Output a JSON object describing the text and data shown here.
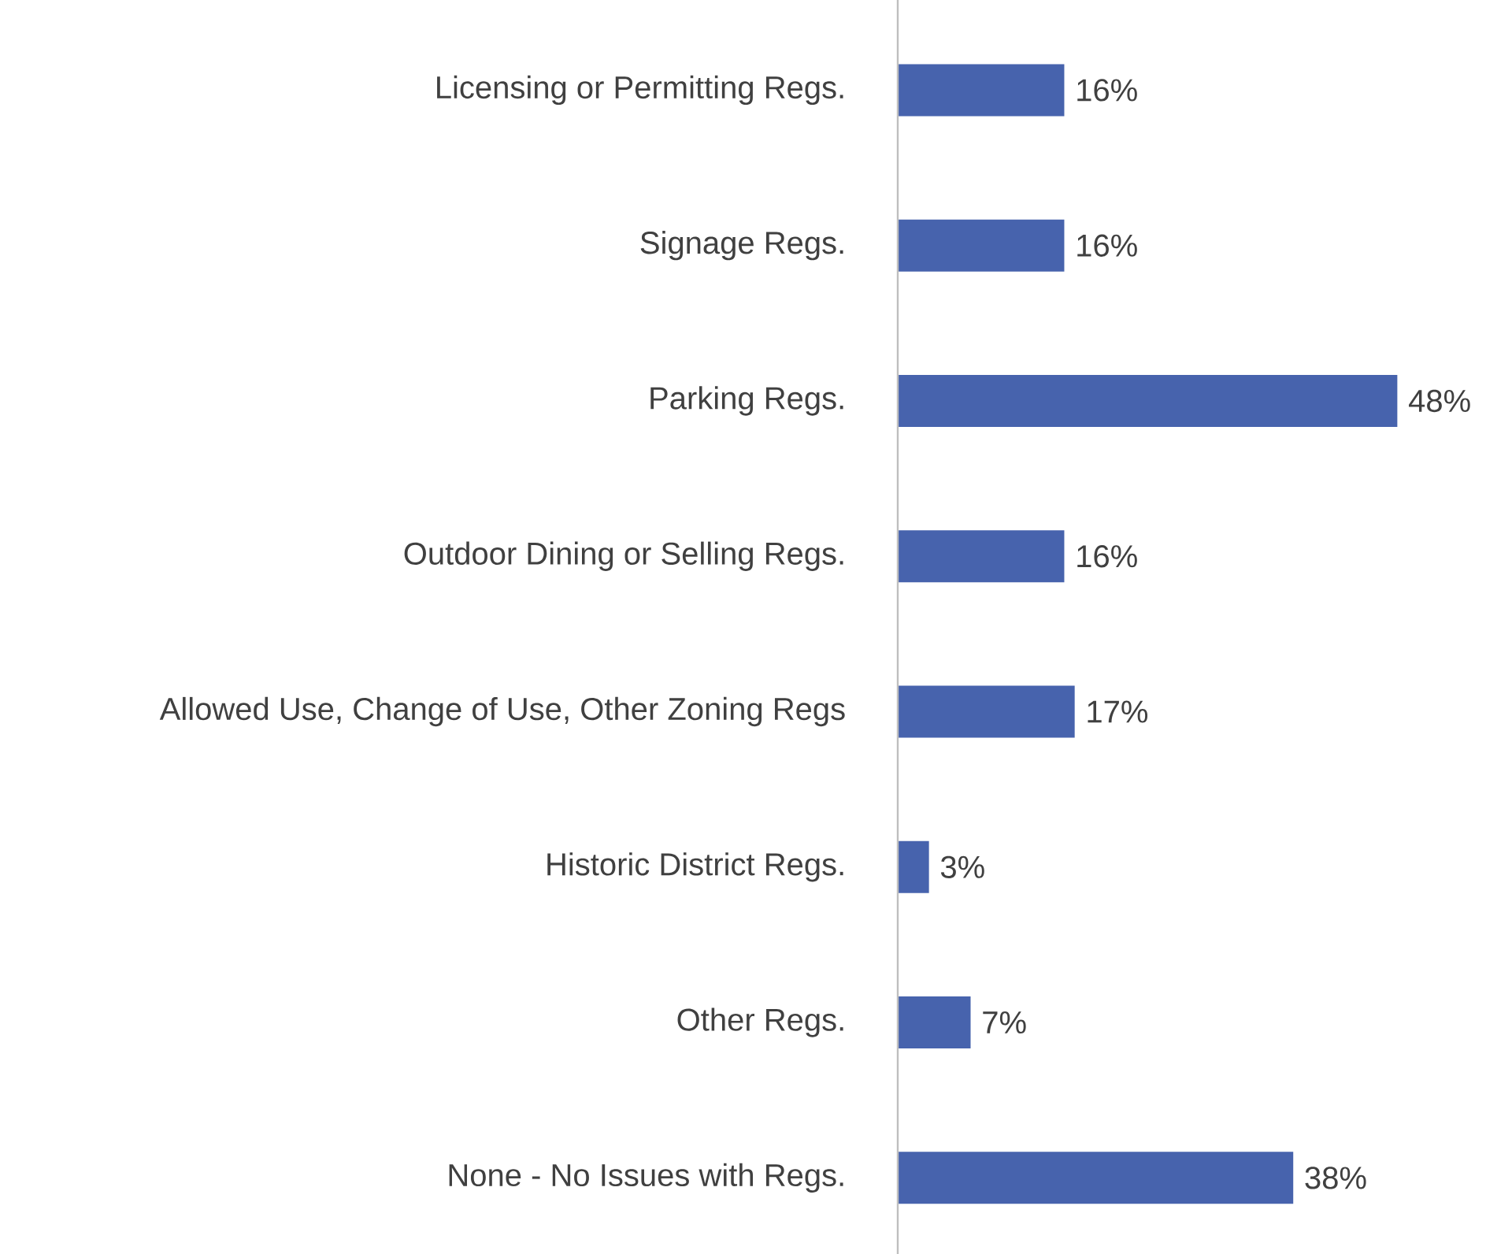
{
  "chart_data": {
    "type": "bar",
    "orientation": "horizontal",
    "categories": [
      "Licensing or Permitting Regs.",
      "Signage Regs.",
      "Parking Regs.",
      "Outdoor Dining or Selling Regs.",
      "Allowed Use, Change of Use, Other Zoning Regs",
      "Historic District Regs.",
      "Other Regs.",
      "None - No Issues with Regs."
    ],
    "values": [
      16,
      16,
      48,
      16,
      17,
      3,
      7,
      38
    ],
    "value_labels": [
      "16%",
      "16%",
      "48%",
      "16%",
      "17%",
      "3%",
      "7%",
      "38%"
    ],
    "color": "#4763ad"
  }
}
